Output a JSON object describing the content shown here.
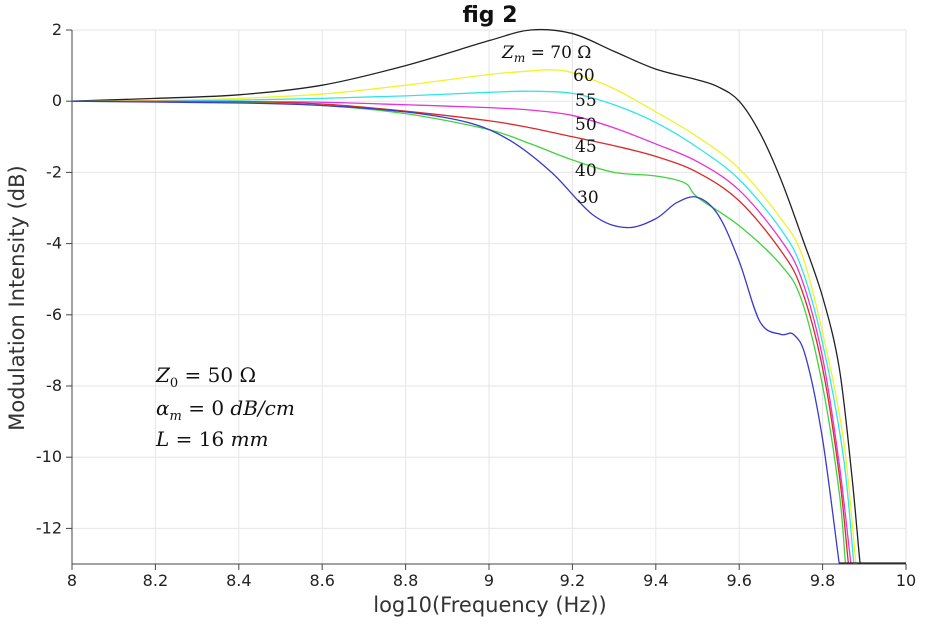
{
  "chart_data": {
    "type": "line",
    "title": "fig 2",
    "xlabel": "log10(Frequency (Hz))",
    "ylabel": "Modulation Intensity (dB)",
    "xlim": [
      8,
      10
    ],
    "ylim": [
      -13,
      2
    ],
    "grid": true,
    "legend": "none",
    "x_ticks": [
      8,
      8.2,
      8.4,
      8.6,
      8.8,
      9,
      9.2,
      9.4,
      9.6,
      9.8,
      10
    ],
    "x_tick_labels": [
      "8",
      "8.2",
      "8.4",
      "8.6",
      "8.8",
      "9",
      "9.2",
      "9.4",
      "9.6",
      "9.8",
      "10"
    ],
    "y_ticks": [
      2,
      0,
      -2,
      -4,
      -6,
      -8,
      -10,
      -12
    ],
    "y_tick_labels": [
      "2",
      "0",
      "-2",
      "-4",
      "-6",
      "-8",
      "-10",
      "-12"
    ],
    "series": [
      {
        "label": "70",
        "color": "#222222",
        "points": [
          [
            8,
            0
          ],
          [
            8.2,
            0.08
          ],
          [
            8.4,
            0.18
          ],
          [
            8.6,
            0.45
          ],
          [
            8.8,
            1.0
          ],
          [
            9.0,
            1.7
          ],
          [
            9.1,
            2.0
          ],
          [
            9.2,
            1.9
          ],
          [
            9.3,
            1.4
          ],
          [
            9.4,
            0.9
          ],
          [
            9.5,
            0.6
          ],
          [
            9.55,
            0.4
          ],
          [
            9.6,
            0.0
          ],
          [
            9.65,
            -0.9
          ],
          [
            9.7,
            -2.2
          ],
          [
            9.75,
            -3.8
          ],
          [
            9.8,
            -5.5
          ],
          [
            9.84,
            -7.5
          ],
          [
            9.87,
            -10.5
          ],
          [
            9.89,
            -13
          ]
        ]
      },
      {
        "label": "60",
        "color": "#f2f22a",
        "points": [
          [
            8,
            0
          ],
          [
            8.2,
            0.02
          ],
          [
            8.4,
            0.08
          ],
          [
            8.6,
            0.2
          ],
          [
            8.8,
            0.45
          ],
          [
            9.0,
            0.75
          ],
          [
            9.1,
            0.85
          ],
          [
            9.15,
            0.88
          ],
          [
            9.2,
            0.8
          ],
          [
            9.3,
            0.35
          ],
          [
            9.4,
            -0.3
          ],
          [
            9.5,
            -1.0
          ],
          [
            9.6,
            -1.9
          ],
          [
            9.7,
            -3.3
          ],
          [
            9.75,
            -4.3
          ],
          [
            9.8,
            -6.5
          ],
          [
            9.85,
            -9.5
          ],
          [
            9.88,
            -13
          ]
        ]
      },
      {
        "label": "55",
        "color": "#2fe6e6",
        "points": [
          [
            8,
            0
          ],
          [
            8.2,
            0
          ],
          [
            8.4,
            0.03
          ],
          [
            8.6,
            0.08
          ],
          [
            8.8,
            0.15
          ],
          [
            9.0,
            0.25
          ],
          [
            9.1,
            0.28
          ],
          [
            9.2,
            0.22
          ],
          [
            9.3,
            -0.1
          ],
          [
            9.4,
            -0.6
          ],
          [
            9.5,
            -1.3
          ],
          [
            9.6,
            -2.2
          ],
          [
            9.7,
            -3.6
          ],
          [
            9.75,
            -4.7
          ],
          [
            9.8,
            -6.8
          ],
          [
            9.85,
            -10.0
          ],
          [
            9.875,
            -13
          ]
        ]
      },
      {
        "label": "50",
        "color": "#e632d7",
        "points": [
          [
            8,
            0
          ],
          [
            8.4,
            -0.01
          ],
          [
            8.6,
            -0.03
          ],
          [
            8.8,
            -0.1
          ],
          [
            9.0,
            -0.18
          ],
          [
            9.1,
            -0.25
          ],
          [
            9.2,
            -0.4
          ],
          [
            9.3,
            -0.75
          ],
          [
            9.4,
            -1.2
          ],
          [
            9.5,
            -1.7
          ],
          [
            9.6,
            -2.5
          ],
          [
            9.7,
            -3.9
          ],
          [
            9.75,
            -5.0
          ],
          [
            9.8,
            -7.2
          ],
          [
            9.84,
            -10.2
          ],
          [
            9.868,
            -13
          ]
        ]
      },
      {
        "label": "45",
        "color": "#d92a2a",
        "points": [
          [
            8,
            0
          ],
          [
            8.4,
            -0.02
          ],
          [
            8.6,
            -0.08
          ],
          [
            8.8,
            -0.28
          ],
          [
            9.0,
            -0.55
          ],
          [
            9.1,
            -0.75
          ],
          [
            9.2,
            -1.0
          ],
          [
            9.3,
            -1.25
          ],
          [
            9.4,
            -1.55
          ],
          [
            9.5,
            -2.0
          ],
          [
            9.6,
            -2.8
          ],
          [
            9.7,
            -4.2
          ],
          [
            9.75,
            -5.3
          ],
          [
            9.8,
            -7.5
          ],
          [
            9.84,
            -10.5
          ],
          [
            9.862,
            -13
          ]
        ]
      },
      {
        "label": "40",
        "color": "#3fd33f",
        "points": [
          [
            8,
            0
          ],
          [
            8.4,
            -0.04
          ],
          [
            8.6,
            -0.12
          ],
          [
            8.8,
            -0.35
          ],
          [
            9.0,
            -0.8
          ],
          [
            9.1,
            -1.2
          ],
          [
            9.2,
            -1.65
          ],
          [
            9.3,
            -2.0
          ],
          [
            9.4,
            -2.1
          ],
          [
            9.47,
            -2.3
          ],
          [
            9.5,
            -2.7
          ],
          [
            9.6,
            -3.5
          ],
          [
            9.7,
            -4.6
          ],
          [
            9.75,
            -5.6
          ],
          [
            9.8,
            -8.0
          ],
          [
            9.84,
            -11.0
          ],
          [
            9.855,
            -13
          ]
        ]
      },
      {
        "label": "30",
        "color": "#3a3acc",
        "points": [
          [
            8,
            0
          ],
          [
            8.4,
            -0.05
          ],
          [
            8.6,
            -0.12
          ],
          [
            8.8,
            -0.3
          ],
          [
            8.95,
            -0.6
          ],
          [
            9.05,
            -1.1
          ],
          [
            9.15,
            -2.0
          ],
          [
            9.25,
            -3.2
          ],
          [
            9.33,
            -3.55
          ],
          [
            9.4,
            -3.3
          ],
          [
            9.45,
            -2.85
          ],
          [
            9.5,
            -2.7
          ],
          [
            9.55,
            -3.2
          ],
          [
            9.6,
            -4.5
          ],
          [
            9.65,
            -6.2
          ],
          [
            9.7,
            -6.55
          ],
          [
            9.73,
            -6.55
          ],
          [
            9.76,
            -7.2
          ],
          [
            9.8,
            -9.5
          ],
          [
            9.84,
            -13
          ]
        ]
      }
    ],
    "annotations": {
      "zm_prefix": "Z",
      "zm_sub": "m",
      "zm_suffix": " = 70 Ω",
      "curve_labels": [
        "60",
        "55",
        "50",
        "45",
        "40",
        "30"
      ],
      "params": [
        {
          "sym": "Z",
          "sub": "0",
          "rest": " = 50 Ω"
        },
        {
          "sym": "α",
          "sub": "m",
          "rest": " = 0 ",
          "unit": "dB/cm"
        },
        {
          "sym": "L",
          "sub": "",
          "rest": " = 16 ",
          "unit": "mm"
        }
      ]
    }
  }
}
